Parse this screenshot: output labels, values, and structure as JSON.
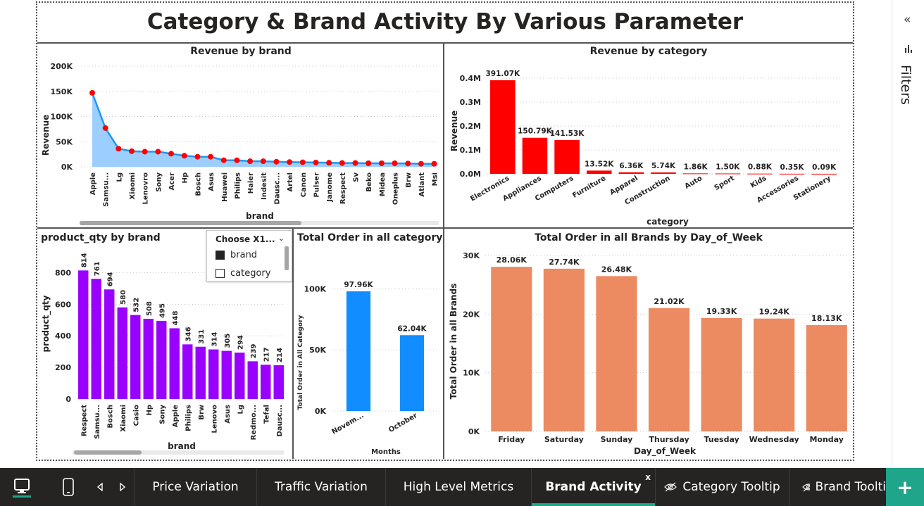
{
  "report": {
    "title": "Category & Brand Activity By Various Parameter"
  },
  "filters": {
    "label": "Filters",
    "collapse_icon": "chevron-double-left-icon"
  },
  "slicer": {
    "title": "Choose X1...",
    "options": [
      "brand",
      "category"
    ],
    "selected": "brand"
  },
  "tabs": {
    "items": [
      "Price Variation",
      "Traffic Variation",
      "High Level Metrics",
      "Brand Activity",
      "Category Tooltip",
      "Brand Toolti"
    ],
    "active": "Brand Activity",
    "close": "x"
  },
  "icons": {
    "desktop": "desktop-icon",
    "phone": "phone-icon",
    "prev": "caret-left-icon",
    "next": "caret-right-icon",
    "hidden": "eye-slash-icon",
    "add": "+"
  },
  "colors": {
    "area_line": "#2196f3",
    "area_fill": "#9ccfff",
    "points": "#ff0000",
    "category_bars": "#ff0000",
    "qty_bars": "#9900ff",
    "month_bars": "#118dff",
    "dow_bars": "#ec8a62",
    "accent": "#1fa58a"
  },
  "chart_data": [
    {
      "id": "revenue_by_brand",
      "type": "area",
      "title": "Revenue by brand",
      "xlabel": "brand",
      "ylabel": "Revenue",
      "ylim": [
        0,
        200000
      ],
      "yticks": [
        "0K",
        "50K",
        "100K",
        "150K",
        "200K"
      ],
      "categories": [
        "Apple",
        "Samsu...",
        "Lg",
        "Xiaomi",
        "Lenovro",
        "Sony",
        "Acer",
        "Hp",
        "Bosch",
        "Asus",
        "Huawei",
        "Philips",
        "Haier",
        "Indesit",
        "Dausc...",
        "Artel",
        "Canon",
        "Pulser",
        "Janome",
        "Respect",
        "Sv",
        "Beko",
        "Midea",
        "Oneplus",
        "Brw",
        "Atlant",
        "Msi"
      ],
      "values": [
        147000,
        77000,
        36000,
        31000,
        30000,
        30000,
        26000,
        22000,
        20000,
        20000,
        13000,
        13000,
        11000,
        11000,
        10000,
        9500,
        9000,
        8500,
        8000,
        7500,
        7500,
        7000,
        7000,
        7000,
        6500,
        6000,
        6000
      ]
    },
    {
      "id": "revenue_by_category",
      "type": "bar",
      "title": "Revenue by category",
      "xlabel": "category",
      "ylabel": "Revenue",
      "ylim": [
        0,
        400000
      ],
      "yticks": [
        "0.0M",
        "0.1M",
        "0.2M",
        "0.3M",
        "0.4M"
      ],
      "categories": [
        "Electronics",
        "Appliances",
        "Computers",
        "Furniture",
        "Apparel",
        "Construction",
        "Auto",
        "Sport",
        "Kids",
        "Accessories",
        "Stationery"
      ],
      "values": [
        391070,
        150790,
        141530,
        13520,
        6360,
        5740,
        1860,
        1500,
        880,
        350,
        90
      ],
      "labels": [
        "391.07K",
        "150.79K",
        "141.53K",
        "13.52K",
        "6.36K",
        "5.74K",
        "1.86K",
        "1.50K",
        "0.88K",
        "0.35K",
        "0.09K"
      ]
    },
    {
      "id": "product_qty_by_brand",
      "type": "bar",
      "title": "product_qty by brand",
      "xlabel": "brand",
      "ylabel": "product_qty",
      "ylim": [
        0,
        900
      ],
      "yticks": [
        "0",
        "200",
        "400",
        "600",
        "800"
      ],
      "categories": [
        "Respect",
        "Samsu...",
        "Bosch",
        "Xiaomi",
        "Casio",
        "Hp",
        "Sony",
        "Apple",
        "Philips",
        "Brw",
        "Lenovo",
        "Asus",
        "Lg",
        "Redmo...",
        "Tefal",
        "Dausc..."
      ],
      "values": [
        814,
        761,
        694,
        580,
        532,
        508,
        495,
        448,
        346,
        331,
        314,
        305,
        294,
        239,
        217,
        214
      ],
      "labels": [
        "814",
        "761",
        "694",
        "580",
        "532",
        "508",
        "495",
        "448",
        "346",
        "331",
        "314",
        "305",
        "294",
        "239",
        "217",
        "214"
      ]
    },
    {
      "id": "orders_by_month",
      "type": "bar",
      "title": "Total Order in all category by Months",
      "xlabel": "Months",
      "ylabel": "Total Order in All Category",
      "ylim": [
        0,
        110000
      ],
      "yticks": [
        "0K",
        "50K",
        "100K"
      ],
      "categories": [
        "Novem...",
        "October"
      ],
      "values": [
        97960,
        62040
      ],
      "labels": [
        "97.96K",
        "62.04K"
      ]
    },
    {
      "id": "orders_by_dow",
      "type": "bar",
      "title": "Total Order in all Brands by Day_of_Week",
      "xlabel": "Day_of_Week",
      "ylabel": "Total Order in all Brands",
      "ylim": [
        0,
        30000
      ],
      "yticks": [
        "0K",
        "10K",
        "20K",
        "30K"
      ],
      "categories": [
        "Friday",
        "Saturday",
        "Sunday",
        "Thursday",
        "Tuesday",
        "Wednesday",
        "Monday"
      ],
      "values": [
        28060,
        27740,
        26480,
        21020,
        19330,
        19240,
        18130
      ],
      "labels": [
        "28.06K",
        "27.74K",
        "26.48K",
        "21.02K",
        "19.33K",
        "19.24K",
        "18.13K"
      ]
    }
  ]
}
